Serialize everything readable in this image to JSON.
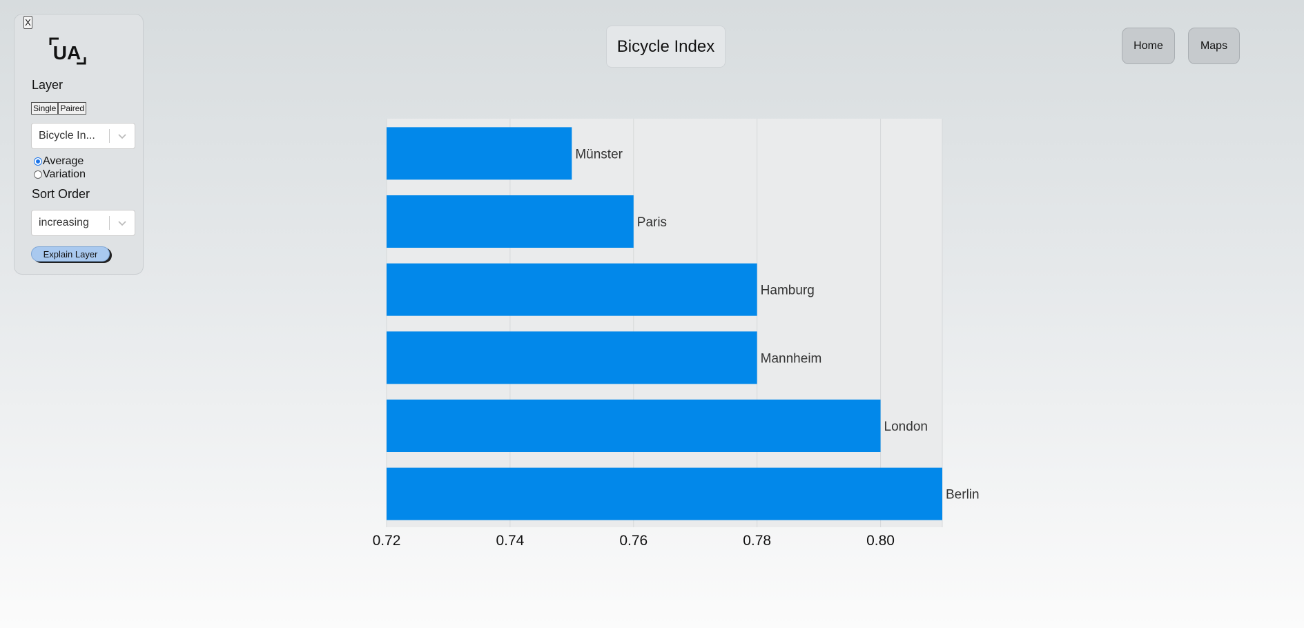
{
  "panel": {
    "close_label": "X",
    "layer_heading": "Layer",
    "mode_options": [
      "Single",
      "Paired"
    ],
    "layer_select_value": "Bicycle In...",
    "stat_options": [
      {
        "label": "Average",
        "checked": true
      },
      {
        "label": "Variation",
        "checked": false
      }
    ],
    "sort_heading": "Sort Order",
    "sort_select_value": "increasing",
    "explain_label": "Explain Layer"
  },
  "header": {
    "title": "Bicycle Index",
    "home_label": "Home",
    "maps_label": "Maps"
  },
  "colors": {
    "bar": "#0288ea",
    "accent": "#1a73e8",
    "plot_background": "#eaebec"
  },
  "chart_data": {
    "type": "bar",
    "orientation": "horizontal",
    "categories": [
      "Münster",
      "Paris",
      "Hamburg",
      "Mannheim",
      "London",
      "Berlin"
    ],
    "values": [
      0.75,
      0.76,
      0.78,
      0.78,
      0.8,
      0.81
    ],
    "xlim": [
      0.72,
      0.81
    ],
    "xticks": [
      "0.72",
      "0.74",
      "0.76",
      "0.78",
      "0.80"
    ],
    "grid": true,
    "labels_position": "end of bar"
  }
}
